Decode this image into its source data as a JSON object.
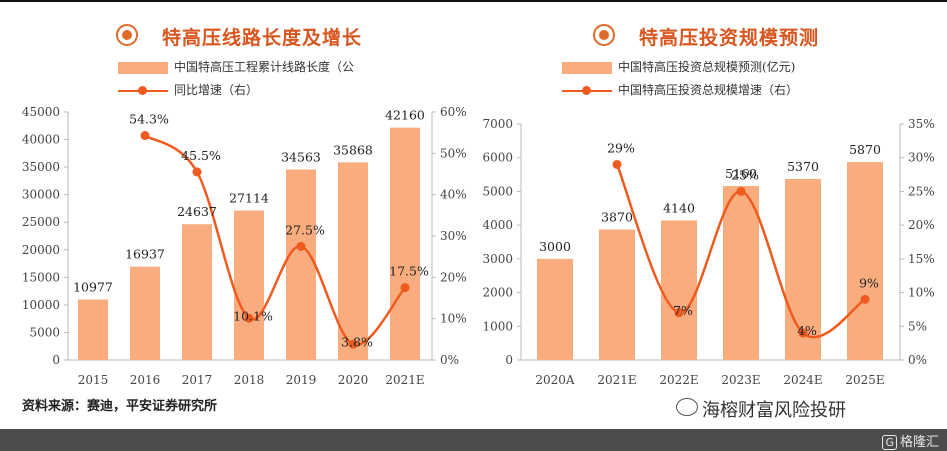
{
  "left": {
    "title": "特高压线路长度及增长",
    "legend_bar": "中国特高压工程累计线路长度（公",
    "legend_line": "同比增速（右）"
  },
  "right": {
    "title": "特高压投资规模预测",
    "legend_bar": "中国特高压投资总规模预测(亿元)",
    "legend_line": "中国特高压投资总规模增速（右）"
  },
  "source": "资料来源：赛迪，平安证券研究所",
  "watermark": "海榕财富风险投研",
  "footer_logo": "格隆汇",
  "footer_logo_mark": "G",
  "colors": {
    "bar": "#f9ad7f",
    "line": "#ef5b1f",
    "title": "#d8551e",
    "icon": "#e06a2a"
  },
  "chart_data": [
    {
      "type": "bar",
      "title": "特高压线路长度及增长",
      "categories": [
        "2015",
        "2016",
        "2017",
        "2018",
        "2019",
        "2020",
        "2021E"
      ],
      "series": [
        {
          "name": "中国特高压工程累计线路长度（公",
          "type": "bar",
          "values": [
            10977,
            16937,
            24637,
            27114,
            34563,
            35868,
            42160
          ],
          "labels": [
            "10977",
            "16937",
            "24637",
            "27114",
            "34563",
            "35868",
            "42160"
          ]
        },
        {
          "name": "同比增速（右）",
          "type": "line",
          "axis": "right",
          "values": [
            null,
            54.3,
            45.5,
            10.1,
            27.5,
            3.8,
            17.5
          ],
          "labels": [
            "",
            "54.3%",
            "45.5%",
            "10.1%",
            "27.5%",
            "3.8%",
            "17.5%"
          ]
        }
      ],
      "ylim": [
        0,
        45000
      ],
      "yticks": [
        "0",
        "5000",
        "10000",
        "15000",
        "20000",
        "25000",
        "30000",
        "35000",
        "40000",
        "45000"
      ],
      "y2lim": [
        0,
        60
      ],
      "y2ticks": [
        "0%",
        "10%",
        "20%",
        "30%",
        "40%",
        "50%",
        "60%"
      ]
    },
    {
      "type": "bar",
      "title": "特高压投资规模预测",
      "categories": [
        "2020A",
        "2021E",
        "2022E",
        "2023E",
        "2024E",
        "2025E"
      ],
      "series": [
        {
          "name": "中国特高压投资总规模预测(亿元)",
          "type": "bar",
          "values": [
            3000,
            3870,
            4140,
            5160,
            5370,
            5870
          ],
          "labels": [
            "3000",
            "3870",
            "4140",
            "5160",
            "5370",
            "5870"
          ]
        },
        {
          "name": "中国特高压投资总规模增速（右）",
          "type": "line",
          "axis": "right",
          "values": [
            null,
            29,
            7,
            25,
            4,
            9
          ],
          "labels": [
            "",
            "29%",
            "7%",
            "25%",
            "4%",
            "9%"
          ]
        }
      ],
      "ylim": [
        0,
        7000
      ],
      "yticks": [
        "0",
        "1000",
        "2000",
        "3000",
        "4000",
        "5000",
        "6000",
        "7000"
      ],
      "y2lim": [
        0,
        35
      ],
      "y2ticks": [
        "0%",
        "5%",
        "10%",
        "15%",
        "20%",
        "25%",
        "30%",
        "35%"
      ]
    }
  ]
}
